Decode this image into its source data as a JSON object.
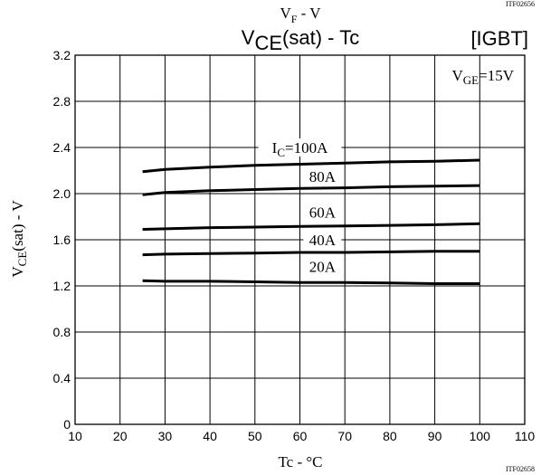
{
  "header": {
    "title_top_main": "V",
    "title_top_sub": "F",
    "title_top_rest": " - V",
    "title_main_a": "V",
    "title_main_sub": "CE",
    "title_main_rest": "(sat) - Tc",
    "igbt_tag": "[IGBT]",
    "code_top": "ITF02656",
    "code_bottom": "ITF02658"
  },
  "chart_data": {
    "type": "line",
    "title": "VCE(sat) - Tc",
    "xlabel": "Tc - °C",
    "ylabel": "VCE(sat) - V",
    "xlim": [
      10,
      110
    ],
    "ylim": [
      0,
      3.2
    ],
    "x_ticks": [
      10,
      20,
      30,
      40,
      50,
      60,
      70,
      80,
      90,
      100,
      110
    ],
    "y_ticks": [
      0,
      0.4,
      0.8,
      1.2,
      1.6,
      2.0,
      2.4,
      2.8,
      3.2
    ],
    "y_tick_labels": [
      "0",
      "0.4",
      "0.8",
      "1.2",
      "1.6",
      "2.0",
      "2.4",
      "2.8",
      "3.2"
    ],
    "grid": true,
    "condition": {
      "main": "V",
      "sub": "GE",
      "rest": "=15V"
    },
    "series": [
      {
        "name": "100A",
        "label_main": "I",
        "label_sub": "C",
        "label_rest": "=100A",
        "label_at": [
          60,
          2.4
        ],
        "x": [
          25,
          30,
          40,
          50,
          60,
          70,
          80,
          90,
          100
        ],
        "values": [
          2.19,
          2.21,
          2.23,
          2.245,
          2.255,
          2.265,
          2.275,
          2.28,
          2.29
        ]
      },
      {
        "name": "80A",
        "label_main": "80A",
        "label_at": [
          65,
          2.15
        ],
        "x": [
          25,
          30,
          40,
          50,
          60,
          70,
          80,
          90,
          100
        ],
        "values": [
          1.99,
          2.01,
          2.025,
          2.035,
          2.045,
          2.05,
          2.06,
          2.065,
          2.07
        ]
      },
      {
        "name": "60A",
        "label_main": "60A",
        "label_at": [
          65,
          1.84
        ],
        "x": [
          25,
          30,
          40,
          50,
          60,
          70,
          80,
          90,
          100
        ],
        "values": [
          1.69,
          1.695,
          1.705,
          1.71,
          1.715,
          1.72,
          1.725,
          1.73,
          1.74
        ]
      },
      {
        "name": "40A",
        "label_main": "40A",
        "label_at": [
          65,
          1.6
        ],
        "x": [
          25,
          30,
          40,
          50,
          60,
          70,
          80,
          90,
          100
        ],
        "values": [
          1.47,
          1.475,
          1.48,
          1.485,
          1.49,
          1.49,
          1.495,
          1.5,
          1.5
        ]
      },
      {
        "name": "20A",
        "label_main": "20A",
        "label_at": [
          65,
          1.37
        ],
        "x": [
          25,
          30,
          40,
          50,
          60,
          70,
          80,
          90,
          100
        ],
        "values": [
          1.245,
          1.24,
          1.24,
          1.235,
          1.23,
          1.23,
          1.225,
          1.22,
          1.22
        ]
      }
    ]
  }
}
